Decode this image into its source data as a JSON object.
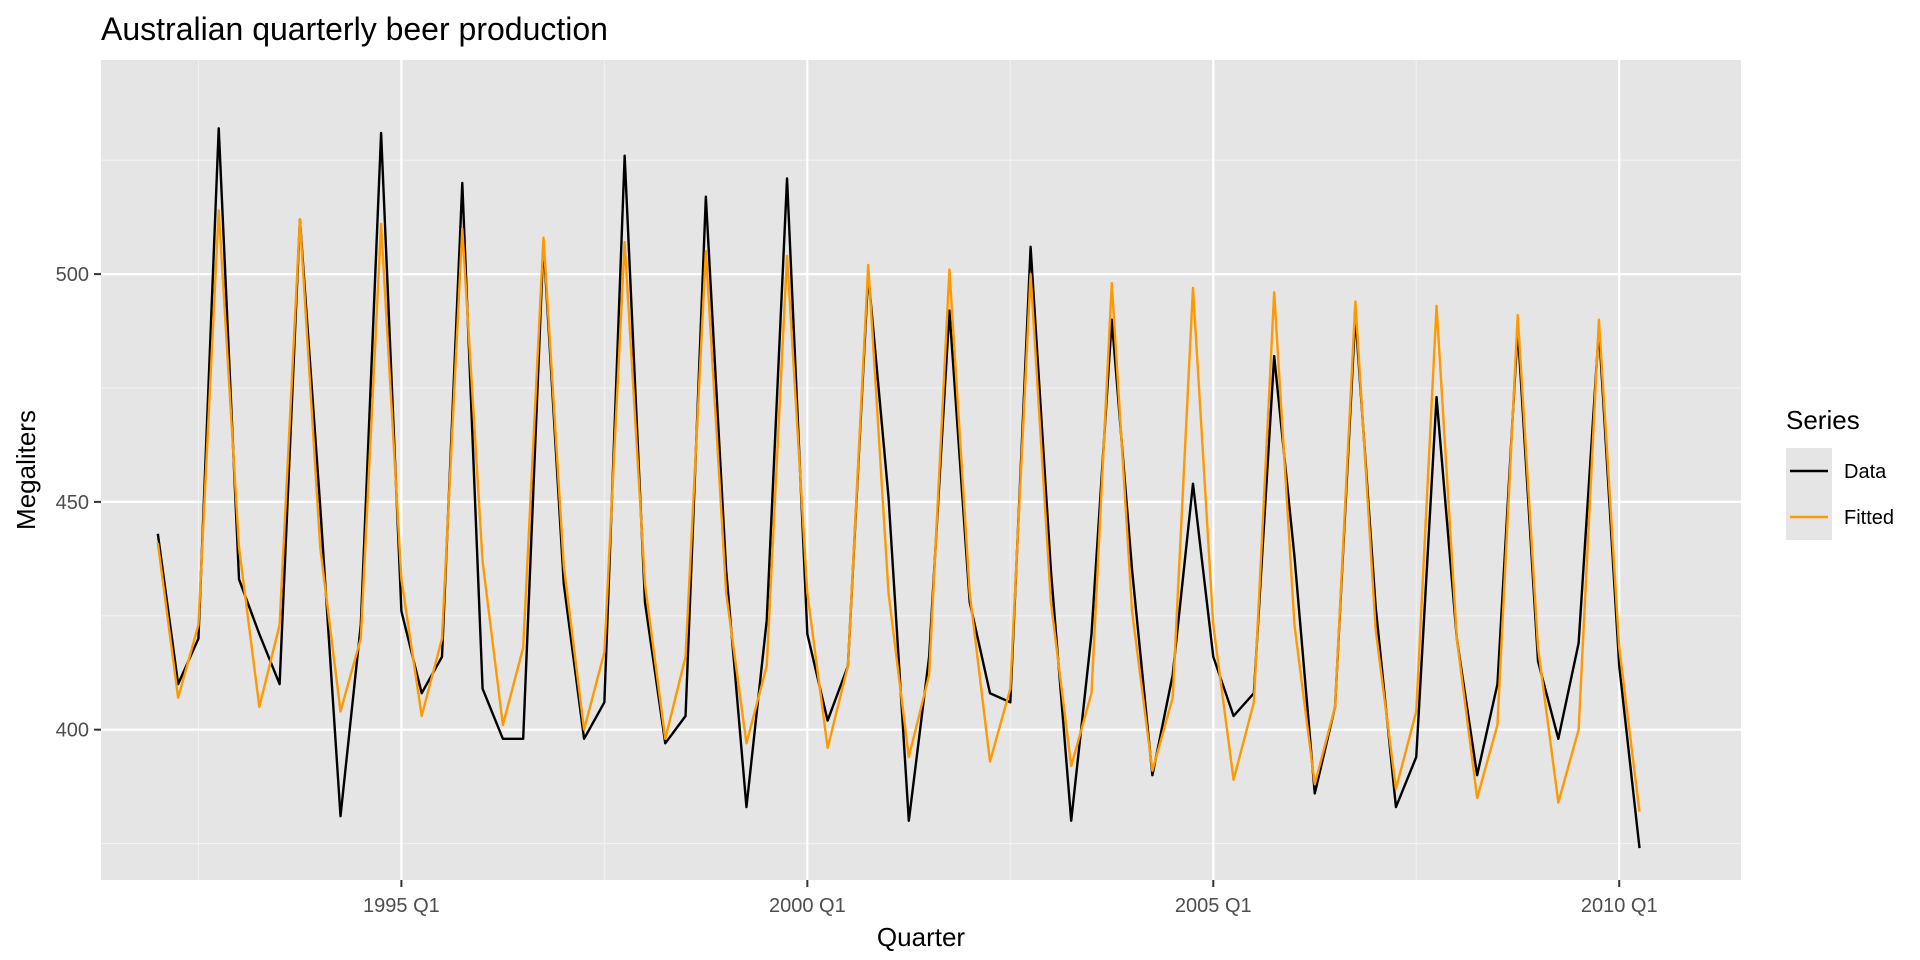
{
  "chart_data": {
    "type": "line",
    "title": "Australian quarterly beer production",
    "xlabel": "Quarter",
    "ylabel": "Megaliters",
    "x_start": "1992 Q1",
    "x_ticks": [
      {
        "label": "1995 Q1",
        "value": 1995.0
      },
      {
        "label": "2000 Q1",
        "value": 2000.0
      },
      {
        "label": "2005 Q1",
        "value": 2005.0
      },
      {
        "label": "2010 Q1",
        "value": 2010.0
      }
    ],
    "xlim": [
      1991.3,
      2011.5
    ],
    "y_ticks": [
      400,
      450,
      500
    ],
    "ylim": [
      367,
      547
    ],
    "grid": true,
    "legend": {
      "title": "Series",
      "position": "right"
    },
    "series": [
      {
        "name": "Data",
        "color": "#000000",
        "values": [
          443,
          410,
          420,
          532,
          433,
          421,
          410,
          512,
          449,
          381,
          423,
          531,
          426,
          408,
          416,
          520,
          409,
          398,
          398,
          507,
          432,
          398,
          406,
          526,
          428,
          397,
          403,
          517,
          435,
          383,
          424,
          521,
          421,
          402,
          414,
          500,
          451,
          380,
          416,
          492,
          428,
          408,
          406,
          506,
          435,
          380,
          421,
          490,
          435,
          390,
          412,
          454,
          416,
          403,
          408,
          482,
          438,
          386,
          405,
          491,
          427,
          383,
          394,
          473,
          420,
          390,
          410,
          488,
          415,
          398,
          419,
          488,
          414,
          374
        ]
      },
      {
        "name": "Fitted",
        "color": "#ff9900",
        "values": [
          441,
          407,
          423,
          514,
          440,
          405,
          423,
          512,
          440,
          404,
          420,
          511,
          433,
          403,
          420,
          510,
          437,
          401,
          418,
          508,
          436,
          400,
          417,
          507,
          432,
          398,
          416,
          505,
          430,
          397,
          414,
          504,
          430,
          396,
          414,
          502,
          430,
          394,
          412,
          501,
          430,
          393,
          409,
          500,
          428,
          392,
          408,
          498,
          426,
          391,
          407,
          497,
          423,
          389,
          406,
          496,
          423,
          388,
          405,
          494,
          422,
          387,
          404,
          493,
          420,
          385,
          401,
          491,
          418,
          384,
          400,
          490,
          418,
          382
        ]
      }
    ]
  }
}
